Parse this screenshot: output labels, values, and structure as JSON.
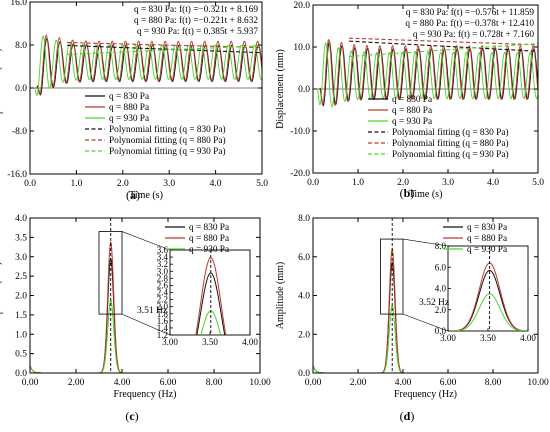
{
  "colors": {
    "q830": "#111111",
    "q880": "#c0392b",
    "q930": "#4cd430",
    "frame": "#000000",
    "annotation": "#000000"
  },
  "chart_data": [
    {
      "type": "line",
      "panel_label": "(a)",
      "xlabel": "Time (s)",
      "ylabel": "Displacement (mm)",
      "xlim": [
        0,
        5
      ],
      "ylim": [
        -16,
        16
      ],
      "xticks": [
        "0.0",
        "1.0",
        "2.0",
        "3.0",
        "4.0",
        "5.0"
      ],
      "yticks": [
        "-16.0",
        "-8.0",
        "0.0",
        "8.0",
        "16.0"
      ],
      "fit_equations": [
        "q = 830 Pa: f(t) =−0.321t + 8.169",
        "q = 880 Pa: f(t) =−0.221t + 8.632",
        "q = 930 Pa: f(t) = 0.385t + 5.937"
      ],
      "legend": [
        "q = 830 Pa",
        "q = 880 Pa",
        "q = 930 Pa",
        "Polynomial fitting  (q = 830 Pa)",
        "Polynomial fitting  (q = 880 Pa)",
        "Polynomial fitting  (q = 930 Pa)"
      ],
      "legend_position": "center",
      "series": [
        {
          "name": "q = 830 Pa",
          "frequency": 3.51,
          "mean": 4.6,
          "amplitude": 3.4,
          "onset": 0.15
        },
        {
          "name": "q = 880 Pa",
          "frequency": 3.51,
          "mean": 5.0,
          "amplitude": 3.7,
          "onset": 0.15
        },
        {
          "name": "q = 930 Pa",
          "frequency": 3.51,
          "mean": 4.8,
          "amplitude": 3.2,
          "onset": 0.1
        }
      ],
      "fits": [
        {
          "name": "Polynomial fitting (q = 830 Pa)",
          "slope": -0.321,
          "intercept": 8.169,
          "x_range": [
            0.8,
            5.0
          ]
        },
        {
          "name": "Polynomial fitting (q = 880 Pa)",
          "slope": -0.221,
          "intercept": 8.632,
          "x_range": [
            0.8,
            5.0
          ]
        },
        {
          "name": "Polynomial fitting (q = 930 Pa)",
          "slope": 0.385,
          "intercept": 5.937,
          "x_range": [
            0.8,
            5.0
          ]
        }
      ]
    },
    {
      "type": "line",
      "panel_label": "(b)",
      "xlabel": "Time (s)",
      "ylabel": "Displacement (mm)",
      "xlim": [
        0,
        5
      ],
      "ylim": [
        -20,
        20
      ],
      "xticks": [
        "0.0",
        "1.0",
        "2.0",
        "3.0",
        "4.0",
        "5.0"
      ],
      "yticks": [
        "-20.0",
        "-10.0",
        "0.0",
        "10.0",
        "20.0"
      ],
      "fit_equations": [
        "q = 830 Pa: f(t) =−0.576t + 11.859",
        "q = 880 Pa: f(t) =−0.378t + 12.410",
        "q = 930 Pa: f(t) =   0.728t + 7.160"
      ],
      "legend": [
        "q = 830 Pa",
        "q = 880 Pa",
        "q = 930 Pa",
        "Polynomial fitting  (q = 830 Pa)",
        "Polynomial fitting  (q = 880 Pa)",
        "Polynomial fitting  (q = 930 Pa)"
      ],
      "legend_position": "center",
      "series": [
        {
          "name": "q = 830 Pa",
          "frequency": 3.52,
          "mean": 3.6,
          "amplitude": 6.0,
          "onset": 0.15
        },
        {
          "name": "q = 880 Pa",
          "frequency": 3.52,
          "mean": 3.9,
          "amplitude": 6.4,
          "onset": 0.15
        },
        {
          "name": "q = 930 Pa",
          "frequency": 3.52,
          "mean": 3.2,
          "amplitude": 5.5,
          "onset": 0.1
        }
      ],
      "fits": [
        {
          "name": "Polynomial fitting (q = 830 Pa)",
          "slope": -0.576,
          "intercept": 11.859,
          "x_range": [
            0.8,
            5.0
          ]
        },
        {
          "name": "Polynomial fitting (q = 880 Pa)",
          "slope": -0.378,
          "intercept": 12.41,
          "x_range": [
            0.8,
            5.0
          ]
        },
        {
          "name": "Polynomial fitting (q = 930 Pa)",
          "slope": 0.728,
          "intercept": 7.16,
          "x_range": [
            0.8,
            5.0
          ]
        }
      ]
    },
    {
      "type": "line",
      "panel_label": "(c)",
      "xlabel": "Frequency (Hz)",
      "ylabel": "Amplitude (mm)",
      "xlim": [
        0,
        10
      ],
      "ylim": [
        0,
        4
      ],
      "xticks": [
        "0.00",
        "2.00",
        "4.00",
        "6.00",
        "8.00",
        "10.00"
      ],
      "yticks": [
        "0.0",
        "0.5",
        "1.0",
        "1.5",
        "2.0",
        "2.5",
        "3.0",
        "3.5",
        "4.0"
      ],
      "legend": [
        "q = 830 Pa",
        "q = 880 Pa",
        "q = 930 Pa"
      ],
      "legend_position": "top-right",
      "peak_frequency_label": "3.51 Hz",
      "peak_frequency": 3.51,
      "series": [
        {
          "name": "q = 830 Pa",
          "peak": 2.95
        },
        {
          "name": "q = 880 Pa",
          "peak": 3.38
        },
        {
          "name": "q = 930 Pa",
          "peak": 1.88
        }
      ],
      "inset": {
        "xlim": [
          3.0,
          4.0
        ],
        "ylim": [
          1.2,
          3.6
        ],
        "xticks": [
          "3.00",
          "3.50",
          "4.00"
        ],
        "yticks": [
          "1.2",
          "1.4",
          "1.6",
          "1.8",
          "2.0",
          "2.2",
          "2.4",
          "2.6",
          "2.8",
          "3.0",
          "3.2",
          "3.4",
          "3.6"
        ]
      }
    },
    {
      "type": "line",
      "panel_label": "(d)",
      "xlabel": "Frequency (Hz)",
      "ylabel": "Amplitude (mm)",
      "xlim": [
        0,
        10
      ],
      "ylim": [
        0,
        8
      ],
      "xticks": [
        "0.00",
        "2.00",
        "4.00",
        "6.00",
        "8.00",
        "10.00"
      ],
      "yticks": [
        "0.0",
        "2.0",
        "4.0",
        "6.0",
        "8.0"
      ],
      "legend": [
        "q = 830 Pa",
        "q = 880 Pa",
        "q = 930 Pa"
      ],
      "legend_position": "top-right",
      "peak_frequency_label": "3.52 Hz",
      "peak_frequency": 3.52,
      "series": [
        {
          "name": "q = 830 Pa",
          "peak": 5.7
        },
        {
          "name": "q = 880 Pa",
          "peak": 6.4
        },
        {
          "name": "q = 930 Pa",
          "peak": 3.5
        }
      ],
      "inset": {
        "xlim": [
          3.0,
          4.0
        ],
        "ylim": [
          0,
          8
        ],
        "xticks": [
          "3.00",
          "3.50",
          "4.00"
        ],
        "yticks": [
          "0.0",
          "2.0",
          "4.0",
          "6.0",
          "8.0"
        ]
      }
    }
  ]
}
